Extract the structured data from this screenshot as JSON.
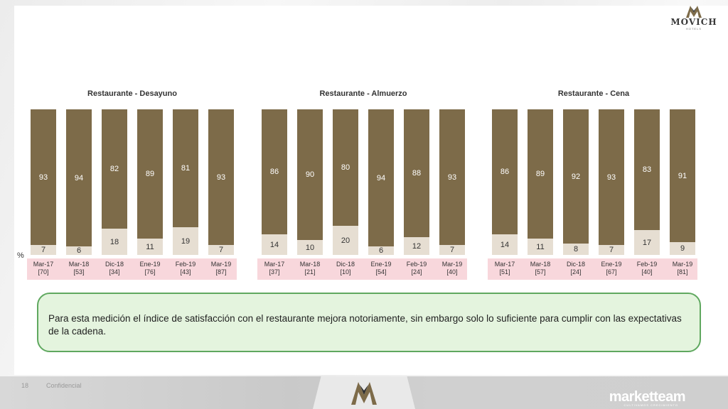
{
  "brand": {
    "name": "MOVICH",
    "subtitle": "HOTELS"
  },
  "axis_unit": "%",
  "chart_data": [
    {
      "type": "bar",
      "stacked": true,
      "title": "Restaurante - Desayuno",
      "categories": [
        "Mar-17",
        "Mar-18",
        "Dic-18",
        "Ene-19",
        "Feb-19",
        "Mar-19"
      ],
      "sample_sizes": [
        "[70]",
        "[53]",
        "[34]",
        "[76]",
        "[43]",
        "[87]"
      ],
      "series": [
        {
          "values": [
            93,
            94,
            82,
            89,
            81,
            93
          ],
          "color": "#7d6b49"
        },
        {
          "values": [
            7,
            6,
            18,
            11,
            19,
            7
          ],
          "color": "#e6ded2"
        }
      ],
      "ylim": [
        0,
        100
      ]
    },
    {
      "type": "bar",
      "stacked": true,
      "title": "Restaurante - Almuerzo",
      "categories": [
        "Mar-17",
        "Mar-18",
        "Dic-18",
        "Ene-19",
        "Feb-19",
        "Mar-19"
      ],
      "sample_sizes": [
        "[37]",
        "[21]",
        "[10]",
        "[54]",
        "[24]",
        "[40]"
      ],
      "series": [
        {
          "values": [
            86,
            90,
            80,
            94,
            88,
            93
          ],
          "color": "#7d6b49"
        },
        {
          "values": [
            14,
            10,
            20,
            6,
            12,
            7
          ],
          "color": "#e6ded2"
        }
      ],
      "ylim": [
        0,
        100
      ]
    },
    {
      "type": "bar",
      "stacked": true,
      "title": "Restaurante - Cena",
      "categories": [
        "Mar-17",
        "Mar-18",
        "Dic-18",
        "Ene-19",
        "Feb-19",
        "Mar-19"
      ],
      "sample_sizes": [
        "[51]",
        "[57]",
        "[24]",
        "[67]",
        "[40]",
        "[81]"
      ],
      "series": [
        {
          "values": [
            86,
            89,
            92,
            93,
            83,
            91
          ],
          "color": "#7d6b49"
        },
        {
          "values": [
            14,
            11,
            8,
            7,
            17,
            9
          ],
          "color": "#e6ded2"
        }
      ],
      "ylim": [
        0,
        100
      ]
    }
  ],
  "note": "Para esta medición el índice de satisfacción con el restaurante mejora notoriamente, sin embargo solo lo suficiente para cumplir con las expectativas de la cadena.",
  "footer": {
    "page_label": "18",
    "confidential": "Confidencial",
    "partner": "marketteam",
    "partner_sub": "CULTIVAMOS CRECIMIENTO"
  }
}
